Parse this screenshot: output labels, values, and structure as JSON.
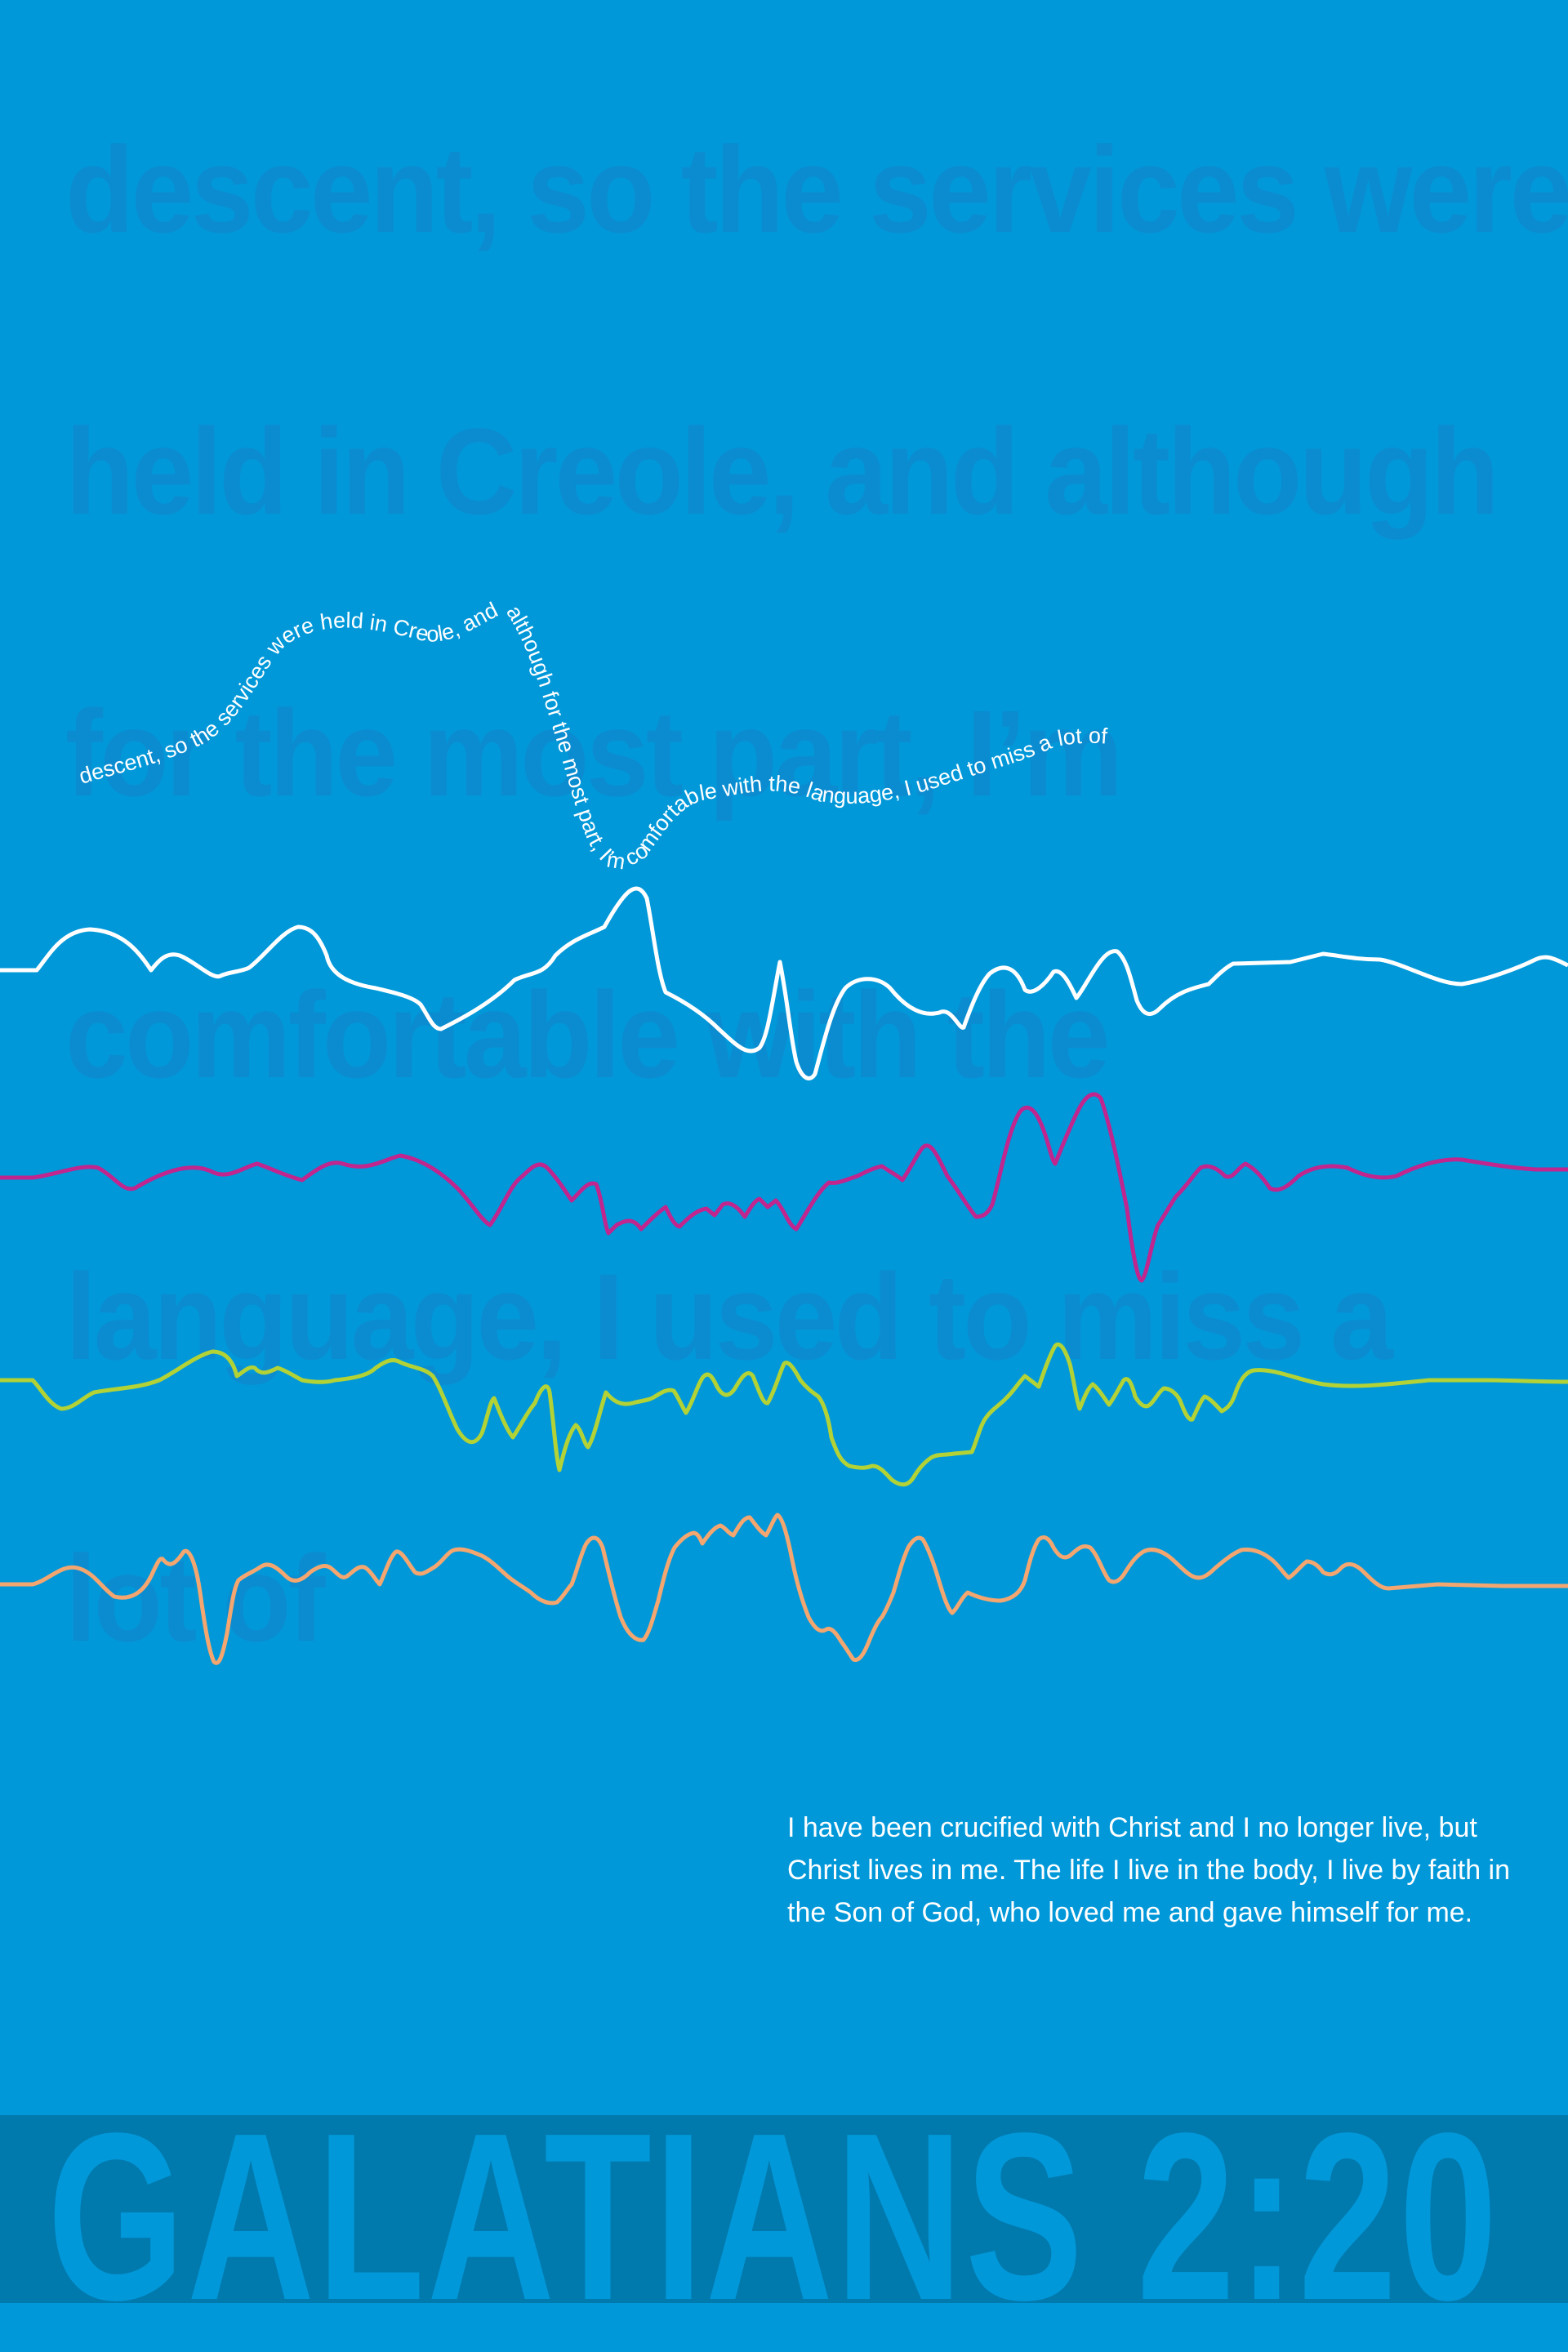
{
  "colors": {
    "background": "#0198d9",
    "background_text": "#0b8cd0",
    "banner": "#0079ad",
    "wave_white": "#ffffff",
    "wave_magenta": "#c0268e",
    "wave_lime": "#b2d236",
    "wave_peach": "#f3a66f"
  },
  "background_text": [
    "descent, so the services were",
    "held in Creole, and  although",
    "for the  most part, I’m",
    "comfortable with the",
    "language, I used to miss a",
    "lot  of"
  ],
  "curved_text": "descent, so the services were held in Creole, and although for the most part, I’m comfortable with the language, I used to miss a lot of",
  "quote": "I have been crucified with Christ and I no longer live, but Christ lives in me. The life I live in the body, I live by faith in the Son of God, who loved me and gave himself for me.",
  "title": "GALATIANS 2:20"
}
